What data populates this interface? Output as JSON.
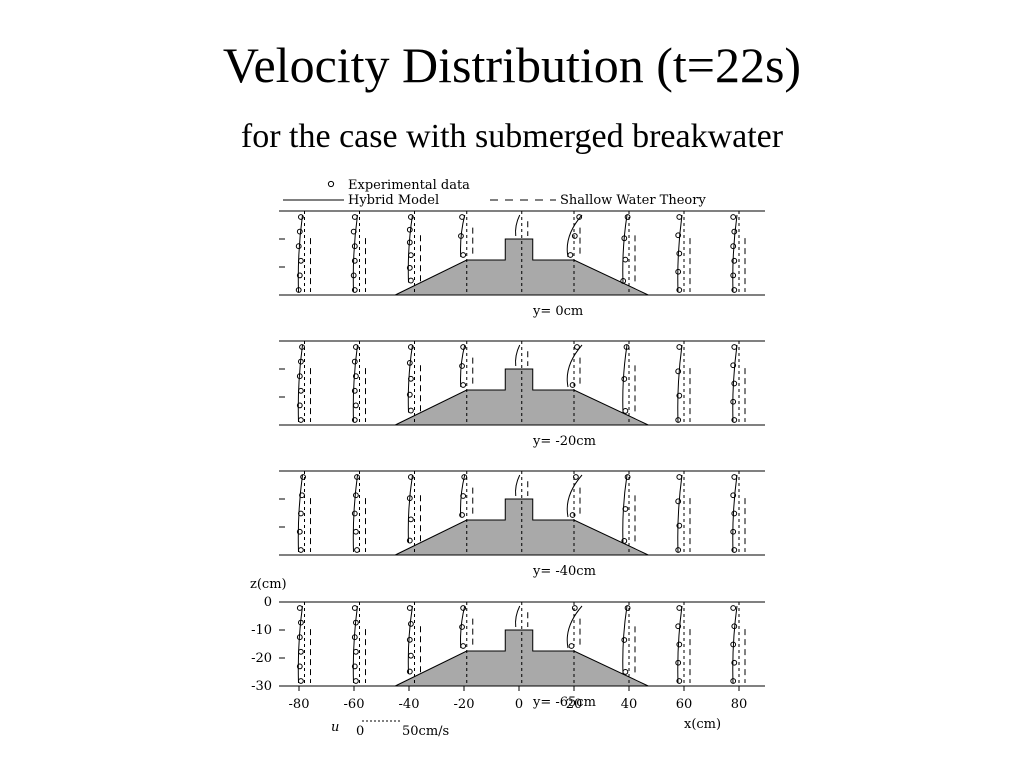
{
  "slide": {
    "title": "Velocity Distribution (t=22s)",
    "subtitle": "for the case with submerged breakwater"
  },
  "chart_data": {
    "type": "line",
    "legend": {
      "experimental": "Experimental data",
      "hybrid": "Hybrid Model",
      "shallow": "Shallow Water Theory"
    },
    "xlabel": "x(cm)",
    "ylabel": "z(cm)",
    "x_ticks": [
      -80,
      -60,
      -40,
      -20,
      0,
      20,
      40,
      60,
      80
    ],
    "z_ticks": [
      0,
      -10,
      -20,
      -30
    ],
    "xlim": [
      -88,
      88
    ],
    "zlim": [
      -30,
      0
    ],
    "grid": "dashed verticals at measurement stations",
    "velocity_scale": {
      "var": "u",
      "zero": "0",
      "max": "50cm/s"
    },
    "stations_x": [
      -78,
      -58,
      -38,
      -19,
      1,
      20,
      40,
      60,
      80
    ],
    "breakwater_profile": [
      [
        -45,
        -30
      ],
      [
        -19,
        -17.5
      ],
      [
        -5,
        -17.5
      ],
      [
        -5,
        -10
      ],
      [
        5,
        -10
      ],
      [
        5,
        -17.5
      ],
      [
        20,
        -17.5
      ],
      [
        47,
        -30
      ]
    ],
    "panels": [
      {
        "label": "y= 0cm",
        "stations": [
          {
            "x": -78,
            "exp_u": [
              4,
              3,
              2,
              4,
              3,
              2
            ]
          },
          {
            "x": -58,
            "exp_u": [
              3,
              2,
              3,
              3,
              2,
              3
            ]
          },
          {
            "x": -38,
            "exp_u": [
              4,
              3,
              3,
              4,
              3,
              4
            ]
          },
          {
            "x": -19,
            "exp_u": [
              3,
              2,
              4
            ]
          },
          {
            "x": 1,
            "exp_u": []
          },
          {
            "x": 20,
            "exp_u": [
              12,
              8,
              4
            ]
          },
          {
            "x": 40,
            "exp_u": [
              6,
              3,
              4,
              2
            ]
          },
          {
            "x": 60,
            "exp_u": [
              3,
              2,
              3,
              2,
              3
            ]
          },
          {
            "x": 80,
            "exp_u": [
              2,
              3,
              2,
              3,
              2,
              3
            ]
          }
        ]
      },
      {
        "label": "y= -20cm",
        "stations": [
          {
            "x": -78,
            "exp_u": [
              5,
              4,
              3,
              4,
              3,
              4
            ]
          },
          {
            "x": -58,
            "exp_u": [
              4,
              3,
              4,
              3,
              4,
              3
            ]
          },
          {
            "x": -38,
            "exp_u": [
              4,
              3,
              4,
              3,
              4
            ]
          },
          {
            "x": -19,
            "exp_u": [
              4,
              3,
              4
            ]
          },
          {
            "x": 1,
            "exp_u": []
          },
          {
            "x": 20,
            "exp_u": [
              10,
              6
            ]
          },
          {
            "x": 40,
            "exp_u": [
              5,
              3,
              4
            ]
          },
          {
            "x": 60,
            "exp_u": [
              3,
              2,
              3,
              2
            ]
          },
          {
            "x": 80,
            "exp_u": [
              3,
              2,
              3,
              2,
              3
            ]
          }
        ]
      },
      {
        "label": "y= -40cm",
        "stations": [
          {
            "x": -78,
            "exp_u": [
              6,
              5,
              4,
              3,
              4
            ]
          },
          {
            "x": -58,
            "exp_u": [
              5,
              4,
              3,
              4,
              5
            ]
          },
          {
            "x": -38,
            "exp_u": [
              4,
              3,
              4,
              3
            ]
          },
          {
            "x": -19,
            "exp_u": [
              5,
              4,
              3
            ]
          },
          {
            "x": 1,
            "exp_u": []
          },
          {
            "x": 20,
            "exp_u": [
              9,
              6
            ]
          },
          {
            "x": 40,
            "exp_u": [
              6,
              4,
              3
            ]
          },
          {
            "x": 60,
            "exp_u": [
              3,
              2,
              3,
              2
            ]
          },
          {
            "x": 80,
            "exp_u": [
              3,
              2,
              3,
              2,
              3
            ]
          }
        ]
      },
      {
        "label": "y= -65cm",
        "stations": [
          {
            "x": -78,
            "exp_u": [
              3,
              4,
              3,
              4,
              3,
              4
            ]
          },
          {
            "x": -58,
            "exp_u": [
              3,
              4,
              3,
              4,
              3,
              4
            ]
          },
          {
            "x": -38,
            "exp_u": [
              3,
              4,
              3,
              4,
              3
            ]
          },
          {
            "x": -19,
            "exp_u": [
              4,
              3,
              4
            ]
          },
          {
            "x": 1,
            "exp_u": []
          },
          {
            "x": 20,
            "exp_u": [
              8,
              5
            ]
          },
          {
            "x": 40,
            "exp_u": [
              6,
              3,
              4
            ]
          },
          {
            "x": 60,
            "exp_u": [
              3,
              2,
              3,
              2,
              3
            ]
          },
          {
            "x": 80,
            "exp_u": [
              2,
              3,
              2,
              3,
              2
            ]
          }
        ]
      }
    ]
  }
}
